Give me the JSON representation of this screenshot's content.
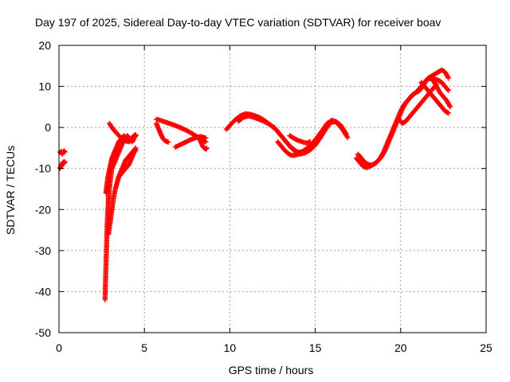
{
  "chart_data": {
    "type": "scatter",
    "title": "Day 197 of 2025, Sidereal Day-to-day VTEC variation (SDTVAR) for receiver boav",
    "xlabel": "GPS time / hours",
    "ylabel": "SDTVAR / TECUs",
    "xlim": [
      0,
      25
    ],
    "ylim": [
      -50,
      20
    ],
    "xticks": [
      0,
      5,
      10,
      15,
      20,
      25
    ],
    "yticks": [
      -50,
      -40,
      -30,
      -20,
      -10,
      0,
      10,
      20
    ],
    "grid": true,
    "marker": "+",
    "series": [
      {
        "name": "segment-1",
        "color": "#ff0000",
        "x": [
          0.05,
          0.1,
          0.15,
          0.2,
          0.25,
          0.3,
          0.35
        ],
        "y": [
          -6,
          -6.2,
          -5.8,
          -6.5,
          -6,
          -5.7,
          -6
        ]
      },
      {
        "name": "segment-2",
        "color": "#ff0000",
        "x": [
          0.05,
          0.1,
          0.15,
          0.2,
          0.25,
          0.3,
          0.35
        ],
        "y": [
          -10,
          -9.6,
          -9.2,
          -8.8,
          -8.4,
          -8.8,
          -8.3
        ]
      },
      {
        "name": "segment-3",
        "color": "#ff0000",
        "x": [
          2.7,
          2.72,
          2.75,
          2.78,
          2.8,
          2.82,
          2.85,
          2.88,
          2.9,
          2.95,
          3,
          3.05,
          3.1,
          3.2,
          3.3,
          3.4,
          3.5,
          3.6,
          3.7,
          3.8,
          3.9,
          4,
          4.1,
          4.2,
          4.3,
          4.4,
          4.5
        ],
        "y": [
          -42,
          -38,
          -34,
          -30,
          -27,
          -24,
          -21,
          -19,
          -17,
          -15,
          -13,
          -11.5,
          -10,
          -9,
          -8,
          -7,
          -6,
          -5,
          -4,
          -3,
          -2.5,
          -2,
          -2.5,
          -3,
          -3.5,
          -2.5,
          -2
        ]
      },
      {
        "name": "segment-4",
        "color": "#ff0000",
        "x": [
          2.75,
          2.8,
          2.85,
          2.9,
          2.95,
          3,
          3.05,
          3.1,
          3.2,
          3.3,
          3.4,
          3.5,
          3.6,
          3.7,
          3.8,
          3.9,
          4,
          4.1,
          4.2,
          4.3,
          4.4,
          4.5
        ],
        "y": [
          -16,
          -14,
          -12.5,
          -11.5,
          -10.5,
          -9.5,
          -8.5,
          -7.5,
          -6.5,
          -5.5,
          -4.5,
          -3.5,
          -3,
          -2.5,
          -2,
          -2.5,
          -3,
          -3.5,
          -3.2,
          -2.8,
          -2.2,
          -1.8
        ]
      },
      {
        "name": "segment-5",
        "color": "#ff0000",
        "x": [
          2.9,
          3,
          3.1,
          3.2,
          3.3,
          3.4,
          3.5,
          3.6,
          3.7,
          3.8,
          3.9,
          4,
          4.1,
          4.2,
          4.3,
          4.4,
          4.5
        ],
        "y": [
          -26,
          -23,
          -20,
          -17,
          -15,
          -13.5,
          -12,
          -11,
          -10,
          -9,
          -8,
          -7.5,
          -7,
          -6.5,
          -6,
          -5.5,
          -5
        ]
      },
      {
        "name": "segment-6",
        "color": "#ff0000",
        "x": [
          3.5,
          3.6,
          3.7,
          3.8,
          3.9,
          4,
          4.1,
          4.2,
          4.3,
          4.4,
          4.5
        ],
        "y": [
          -12,
          -11.5,
          -11,
          -10.5,
          -10,
          -9.5,
          -9,
          -8,
          -7,
          -6,
          -5.5
        ]
      },
      {
        "name": "segment-7",
        "color": "#ff0000",
        "x": [
          2.95,
          3.1,
          3.25,
          3.4,
          3.55,
          3.7,
          3.85,
          4,
          4.15,
          4.3,
          4.45
        ],
        "y": [
          1,
          0,
          -0.8,
          -1.5,
          -2.2,
          -2.8,
          -3.2,
          -3.4,
          -3,
          -2.4,
          -1.8
        ]
      },
      {
        "name": "segment-8",
        "color": "#ff0000",
        "x": [
          5.7,
          5.9,
          6.1,
          6.3,
          6.6,
          6.9,
          7.2,
          7.5,
          7.8,
          8.1,
          8.4,
          8.6
        ],
        "y": [
          2,
          1.8,
          1.5,
          1.2,
          0.8,
          0.3,
          -0.2,
          -0.8,
          -1.5,
          -2.3,
          -3,
          -3.5
        ]
      },
      {
        "name": "segment-9",
        "color": "#ff0000",
        "x": [
          5.7,
          5.8,
          5.9,
          6,
          6.1,
          6.2,
          6.3,
          6.4
        ],
        "y": [
          1,
          0,
          -1,
          -2,
          -2.8,
          -3.2,
          -3.4,
          -3.6
        ]
      },
      {
        "name": "segment-10",
        "color": "#ff0000",
        "x": [
          6.8,
          7.1,
          7.4,
          7.7,
          8,
          8.3,
          8.6
        ],
        "y": [
          -4.8,
          -4.2,
          -3.6,
          -3,
          -2.5,
          -2.2,
          -2.6
        ]
      },
      {
        "name": "segment-11",
        "color": "#ff0000",
        "x": [
          8.2,
          8.3,
          8.4,
          8.5,
          8.6,
          8.65
        ],
        "y": [
          -2.5,
          -3.5,
          -4.5,
          -5,
          -5.3,
          -5
        ]
      },
      {
        "name": "segment-12",
        "color": "#ff0000",
        "x": [
          9.8,
          10,
          10.3,
          10.6,
          10.9,
          11.2,
          11.5,
          11.8,
          12.1,
          12.4,
          12.7,
          13,
          13.3,
          13.6,
          13.9,
          14.2,
          14.5,
          14.8,
          15.1,
          15.4,
          15.7,
          16,
          16.3,
          16.6,
          16.9
        ],
        "y": [
          -0.5,
          0.5,
          1.8,
          2.8,
          3.3,
          3.2,
          2.8,
          2.3,
          1.5,
          0.5,
          -0.5,
          -2,
          -3.5,
          -5,
          -6,
          -6,
          -5.2,
          -4,
          -2.5,
          -0.8,
          1,
          1.8,
          1,
          -0.5,
          -2.5
        ]
      },
      {
        "name": "segment-13",
        "color": "#ff0000",
        "x": [
          10.5,
          10.8,
          11.1,
          11.4,
          11.7,
          12,
          12.3,
          12.6,
          12.9,
          13.2,
          13.5,
          13.8,
          14.1,
          14.4,
          14.7,
          15,
          15.3,
          15.6,
          15.9,
          16.2,
          16.5,
          16.8
        ],
        "y": [
          1.5,
          2.5,
          2.8,
          2.5,
          2,
          1.5,
          0.8,
          0,
          -1.5,
          -3,
          -4.5,
          -5.5,
          -6.5,
          -6.2,
          -5.5,
          -4.3,
          -2.5,
          -0.5,
          1.2,
          1.5,
          0.5,
          -1.5
        ]
      },
      {
        "name": "segment-14",
        "color": "#ff0000",
        "x": [
          12.8,
          13,
          13.2,
          13.4,
          13.6,
          13.8,
          14,
          14.2,
          14.4,
          14.6,
          14.8
        ],
        "y": [
          -3.5,
          -4.5,
          -5.5,
          -6.3,
          -6.8,
          -6.8,
          -6.5,
          -6,
          -5.5,
          -5,
          -4.3
        ]
      },
      {
        "name": "segment-15",
        "color": "#ff0000",
        "x": [
          13.5,
          13.7,
          13.9,
          14.1,
          14.3,
          14.5,
          14.7
        ],
        "y": [
          -2,
          -2.5,
          -3,
          -3.3,
          -3.6,
          -3.8,
          -3.5
        ]
      },
      {
        "name": "segment-16",
        "color": "#ff0000",
        "x": [
          17.4,
          17.6,
          17.8,
          18,
          18.2,
          18.4,
          18.6,
          18.8,
          19,
          19.2,
          19.4,
          19.6,
          19.8,
          20,
          20.2,
          20.4,
          20.6,
          20.8,
          21,
          21.2,
          21.4,
          21.6,
          21.8,
          22,
          22.2,
          22.4,
          22.6,
          22.8
        ],
        "y": [
          -7.5,
          -8.5,
          -9.5,
          -9.8,
          -9.5,
          -9,
          -8.5,
          -7.5,
          -6,
          -4,
          -2,
          0,
          2,
          4,
          5.5,
          6.5,
          7.5,
          8.2,
          9,
          10,
          11,
          12,
          12.5,
          13,
          13.5,
          14,
          13.5,
          12
        ]
      },
      {
        "name": "segment-17",
        "color": "#ff0000",
        "x": [
          17.5,
          17.7,
          17.9,
          18.1,
          18.3,
          18.5,
          18.7,
          18.9,
          19.1,
          19.3,
          19.5,
          19.7,
          19.9,
          20.1,
          20.3,
          20.5,
          20.7,
          20.9,
          21.1,
          21.3,
          21.5,
          21.7,
          21.9,
          22.1,
          22.3,
          22.5,
          22.7,
          22.9
        ],
        "y": [
          -6.5,
          -7.5,
          -8.5,
          -9,
          -9.2,
          -8.8,
          -8,
          -7,
          -5.5,
          -3.5,
          -1.5,
          0.5,
          2.5,
          4.5,
          6,
          7,
          8,
          8.5,
          9,
          10,
          11.5,
          12,
          11.5,
          10,
          8.5,
          7.5,
          6.5,
          5
        ]
      },
      {
        "name": "segment-18",
        "color": "#ff0000",
        "x": [
          19.9,
          20.1,
          20.3,
          20.5,
          20.7,
          20.9,
          21.1,
          21.3,
          21.5,
          21.7,
          21.9,
          22.1
        ],
        "y": [
          2,
          1,
          1.5,
          2.5,
          3.5,
          4.5,
          5.5,
          6.5,
          7.5,
          8.5,
          9.5,
          10.5
        ]
      },
      {
        "name": "segment-19",
        "color": "#ff0000",
        "x": [
          21.2,
          21.4,
          21.6,
          21.8,
          22,
          22.2,
          22.4,
          22.6,
          22.8
        ],
        "y": [
          11,
          10,
          9,
          8,
          7,
          6,
          5,
          4,
          3.5
        ]
      },
      {
        "name": "segment-20",
        "color": "#ff0000",
        "x": [
          21.8,
          22,
          22.2,
          22.4,
          22.6,
          22.8
        ],
        "y": [
          12,
          11.8,
          11.5,
          11,
          10,
          9
        ]
      }
    ]
  }
}
